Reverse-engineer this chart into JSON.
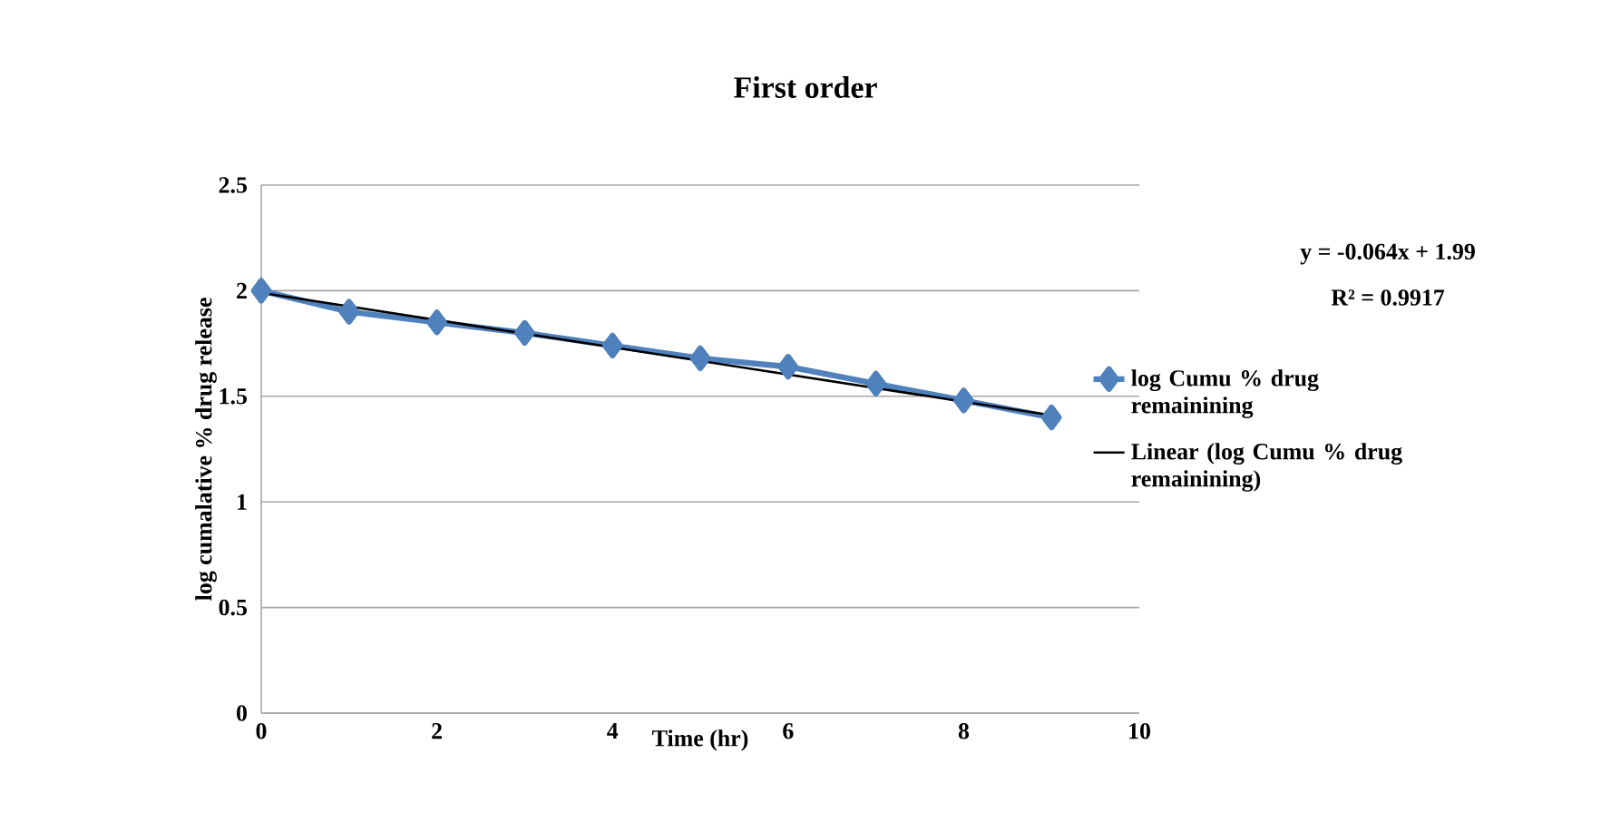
{
  "chart_data": {
    "type": "line",
    "title": "First order",
    "xlabel": "Time (hr)",
    "ylabel": "log cumalative % drug release",
    "x": [
      0,
      1,
      2,
      3,
      4,
      5,
      6,
      7,
      8,
      9
    ],
    "series": [
      {
        "name": "log Cumu % drug remainining",
        "color": "#4f81bd",
        "values": [
          2.0,
          1.9,
          1.85,
          1.8,
          1.74,
          1.68,
          1.64,
          1.56,
          1.48,
          1.4
        ]
      },
      {
        "name": "Linear (log Cumu % drug remainining)",
        "color": "#000000",
        "type": "line",
        "marker": "none",
        "x": [
          0,
          9
        ],
        "values": [
          1.99,
          1.41
        ]
      }
    ],
    "annotations": [
      "y = -0.064x + 1.99",
      "R² = 0.9917"
    ],
    "xlim": [
      0,
      10
    ],
    "ylim": [
      0,
      2.5
    ],
    "xticks": [
      0,
      2,
      4,
      6,
      8,
      10
    ],
    "yticks": [
      0,
      0.5,
      1,
      1.5,
      2,
      2.5
    ],
    "grid": "y",
    "legend": "right",
    "marker": "diamond",
    "line_style": "solid"
  }
}
